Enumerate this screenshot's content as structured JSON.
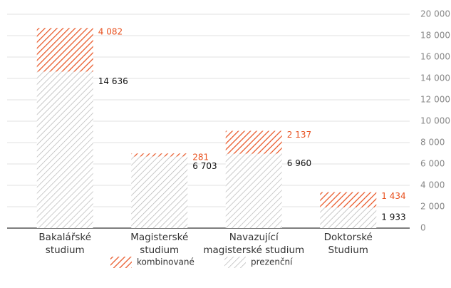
{
  "chart_data": {
    "type": "stacked_bar",
    "categories": [
      "Bakalářské\nstudium",
      "Magisterské\nstudium",
      "Navazující\nmagisterské studium",
      "Doktorské\nStudium"
    ],
    "series": [
      {
        "name": "prezenční",
        "color": "#b4b4b4",
        "label_color": "#111111",
        "values": [
          14636,
          6703,
          6960,
          1933
        ],
        "value_labels": [
          "14 636",
          "6 703",
          "6 960",
          "1 933"
        ]
      },
      {
        "name": "kombinované",
        "color": "#e8501e",
        "label_color": "#e8501e",
        "values": [
          4082,
          281,
          2137,
          1434
        ],
        "value_labels": [
          "4 082",
          "281",
          "2 137",
          "1 434"
        ]
      }
    ],
    "ylim": [
      0,
      20000
    ],
    "yticks": [
      0,
      {
        "value": 2000,
        "label": "2 000"
      },
      {
        "value": 4000,
        "label": "4 000"
      },
      {
        "value": 6000,
        "label": "6 000"
      },
      {
        "value": 8000,
        "label": "8 000"
      },
      {
        "value": 10000,
        "label": "10 000"
      },
      {
        "value": 12000,
        "label": "12 000"
      },
      {
        "value": 14000,
        "label": "14 000"
      },
      {
        "value": 16000,
        "label": "16 000"
      },
      {
        "value": 18000,
        "label": "18 000"
      },
      {
        "value": 20000,
        "label": "20 000"
      }
    ],
    "grid": true,
    "legend": "bottom"
  }
}
